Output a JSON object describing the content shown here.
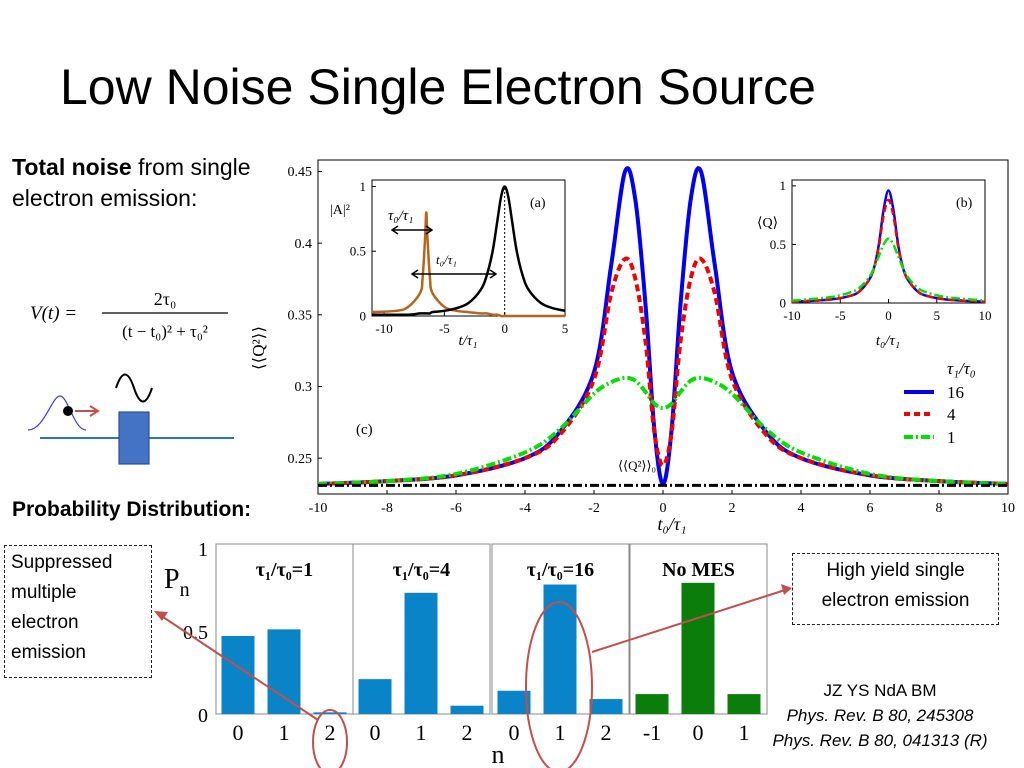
{
  "slide": {
    "title": "Low Noise Single Electron Source",
    "intro_bold": "Total noise",
    "intro_rest": " from single  electron emission:",
    "formula": {
      "lhs": "V(t) =",
      "numerator": "2τ₀",
      "denominator": "(t − t₀)² + τ₀²"
    },
    "prob_label": "Probability Distribution:",
    "callout_left": "Suppressed multiple electron emission",
    "callout_right": "High yield single electron emission",
    "refs": {
      "authors": "JZ YS NdA BM",
      "ref1": "Phys. Rev. B 80, 245308",
      "ref2": "Phys. Rev. B 80, 041313 (R)"
    }
  },
  "colors": {
    "s16": "#0000ee",
    "s4": "#ee0000",
    "s1": "#00dd00",
    "bar_blue": "#0a84c8",
    "bar_green": "#0b7d0b",
    "inset_pulse": "#b5651d",
    "annotation": "#c0504d"
  },
  "chart_data": [
    {
      "id": "c",
      "type": "line",
      "panel_label": "(c)",
      "xlabel": "t₀/τ₁",
      "ylabel": "⟨⟨Q²⟩⟩",
      "xlim": [
        -10,
        10
      ],
      "ylim": [
        0.225,
        0.458
      ],
      "xticks": [
        -10,
        -8,
        -6,
        -4,
        -2,
        0,
        2,
        4,
        6,
        8,
        10
      ],
      "yticks": [
        0.25,
        0.3,
        0.35,
        0.4,
        0.45
      ],
      "ytick_labels": [
        "0.25",
        "0.3",
        "0.35",
        "0.4",
        "0.45"
      ],
      "legend_title": "τ₁/τ₀",
      "legend_position": "right",
      "baseline_label": "⟨⟨Q²⟩⟩₀",
      "baseline": 0.231,
      "x": [
        -10,
        -8,
        -6,
        -4,
        -3,
        -2,
        -1.5,
        -1.1,
        -0.8,
        -0.5,
        -0.25,
        0,
        0.25,
        0.5,
        0.8,
        1.1,
        1.5,
        2,
        3,
        4,
        6,
        8,
        10
      ],
      "series": [
        {
          "name": "16",
          "style": "solid",
          "values": [
            0.232,
            0.234,
            0.238,
            0.25,
            0.268,
            0.31,
            0.385,
            0.45,
            0.43,
            0.355,
            0.27,
            0.232,
            0.27,
            0.355,
            0.43,
            0.45,
            0.385,
            0.31,
            0.268,
            0.25,
            0.238,
            0.234,
            0.232
          ]
        },
        {
          "name": "4",
          "style": "dashed",
          "values": [
            0.232,
            0.234,
            0.238,
            0.25,
            0.266,
            0.305,
            0.365,
            0.389,
            0.375,
            0.33,
            0.268,
            0.245,
            0.268,
            0.33,
            0.375,
            0.389,
            0.365,
            0.305,
            0.266,
            0.25,
            0.238,
            0.234,
            0.232
          ]
        },
        {
          "name": "1",
          "style": "dashdot",
          "values": [
            0.232,
            0.234,
            0.239,
            0.254,
            0.27,
            0.295,
            0.303,
            0.306,
            0.304,
            0.296,
            0.288,
            0.285,
            0.288,
            0.296,
            0.304,
            0.306,
            0.303,
            0.295,
            0.27,
            0.254,
            0.239,
            0.234,
            0.232
          ]
        }
      ]
    },
    {
      "id": "a",
      "type": "line",
      "panel_label": "(a)",
      "xlabel": "t/τ₁",
      "ylabel": "|A|²",
      "xlim": [
        -11,
        5
      ],
      "ylim": [
        0,
        1.05
      ],
      "xticks": [
        -10,
        -5,
        0,
        5
      ],
      "yticks": [
        0,
        0.5,
        1
      ],
      "ytick_labels": [
        "0",
        "0.5",
        "1"
      ],
      "annotations": [
        "τ₀/τ₁",
        "t₀/τ₁"
      ],
      "x": [
        -11,
        -9,
        -8,
        -7,
        -6.8,
        -6.6,
        -6.5,
        -6.4,
        -6.2,
        -6,
        -5,
        -4,
        -3,
        -2,
        -1.5,
        -1,
        -0.6,
        -0.3,
        0,
        0.3,
        0.6,
        1,
        1.5,
        2,
        3,
        4,
        5
      ],
      "series": [
        {
          "name": "pulse",
          "values": [
            0.03,
            0.04,
            0.07,
            0.18,
            0.3,
            0.6,
            0.8,
            0.6,
            0.3,
            0.18,
            0.07,
            0.04,
            0.03,
            0.02,
            0.02,
            0.01,
            0.01,
            0.0,
            0.0,
            0.0,
            0.0,
            0.0,
            0.0,
            0.0,
            0.0,
            0.0,
            0.0
          ]
        },
        {
          "name": "response",
          "values": [
            0.01,
            0.01,
            0.01,
            0.02,
            0.02,
            0.02,
            0.02,
            0.02,
            0.02,
            0.03,
            0.04,
            0.06,
            0.1,
            0.2,
            0.31,
            0.5,
            0.74,
            0.92,
            1.0,
            0.92,
            0.74,
            0.5,
            0.31,
            0.2,
            0.1,
            0.06,
            0.04
          ]
        }
      ]
    },
    {
      "id": "b",
      "type": "line",
      "panel_label": "(b)",
      "xlabel": "t₀/τ₁",
      "ylabel": "⟨Q⟩",
      "xlim": [
        -10,
        10
      ],
      "ylim": [
        0,
        1.05
      ],
      "xticks": [
        -10,
        -5,
        0,
        5,
        10
      ],
      "yticks": [
        0,
        0.5,
        1
      ],
      "ytick_labels": [
        "0",
        "0.5",
        "1"
      ],
      "x": [
        -10,
        -6,
        -4,
        -3,
        -2,
        -1.5,
        -1,
        -0.5,
        0,
        0.5,
        1,
        1.5,
        2,
        3,
        4,
        6,
        10
      ],
      "series": [
        {
          "name": "16",
          "style": "solid",
          "values": [
            0.01,
            0.03,
            0.06,
            0.1,
            0.2,
            0.3,
            0.5,
            0.8,
            0.96,
            0.8,
            0.5,
            0.3,
            0.2,
            0.1,
            0.06,
            0.03,
            0.01
          ]
        },
        {
          "name": "4",
          "style": "dashed",
          "values": [
            0.01,
            0.03,
            0.06,
            0.1,
            0.2,
            0.3,
            0.48,
            0.75,
            0.88,
            0.75,
            0.48,
            0.3,
            0.2,
            0.1,
            0.06,
            0.03,
            0.01
          ]
        },
        {
          "name": "1",
          "style": "dashdot",
          "values": [
            0.02,
            0.05,
            0.09,
            0.13,
            0.22,
            0.3,
            0.4,
            0.5,
            0.55,
            0.5,
            0.4,
            0.3,
            0.22,
            0.13,
            0.09,
            0.05,
            0.02
          ]
        }
      ]
    },
    {
      "id": "pn",
      "type": "bar",
      "ylabel": "Pn",
      "xlabel": "n",
      "ylim": [
        0,
        1
      ],
      "yticks": [
        0,
        0.5,
        1
      ],
      "ytick_labels": [
        "0",
        "0.5",
        "1"
      ],
      "panels": [
        {
          "title": "τ₁/τ₀=1",
          "categories": [
            "0",
            "1",
            "2"
          ],
          "values": [
            0.47,
            0.51,
            0.01
          ],
          "color": "blue"
        },
        {
          "title": "τ₁/τ₀=4",
          "categories": [
            "0",
            "1",
            "2"
          ],
          "values": [
            0.21,
            0.73,
            0.05
          ],
          "color": "blue"
        },
        {
          "title": "τ₁/τ₀=16",
          "categories": [
            "0",
            "1",
            "2"
          ],
          "values": [
            0.14,
            0.78,
            0.09
          ],
          "color": "blue"
        },
        {
          "title": "No MES",
          "categories": [
            "-1",
            "0",
            "1"
          ],
          "values": [
            0.12,
            0.79,
            0.12
          ],
          "color": "green"
        }
      ]
    }
  ]
}
